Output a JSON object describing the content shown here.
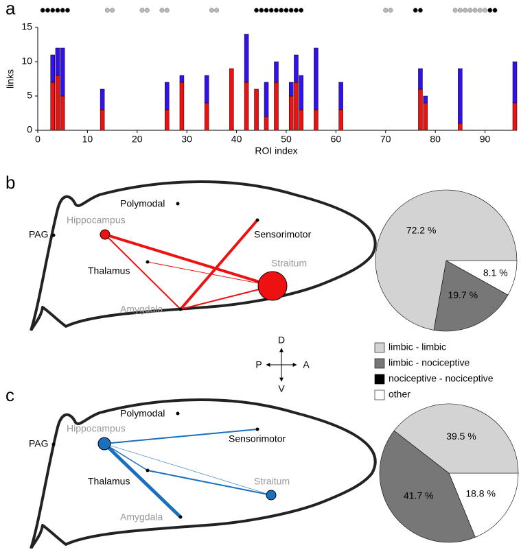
{
  "panel_labels": [
    "a",
    "b",
    "c"
  ],
  "chart_data": [
    {
      "type": "bar",
      "stacked": true,
      "xlabel": "ROI index",
      "ylabel": "links",
      "x": [
        3,
        4,
        5,
        13,
        26,
        29,
        34,
        39,
        42,
        44,
        46,
        48,
        51,
        52,
        53,
        56,
        61,
        77,
        78,
        85,
        96
      ],
      "series": [
        {
          "color": "#ee1111",
          "values": [
            7,
            8,
            5,
            3,
            3,
            7,
            4,
            9,
            7,
            6,
            2,
            7,
            5,
            7,
            3,
            3,
            3,
            6,
            4,
            1,
            4
          ]
        },
        {
          "color": "#3311ee",
          "values": [
            4,
            4,
            7,
            3,
            4,
            1,
            4,
            0,
            7,
            0,
            5,
            3,
            2,
            4,
            5,
            9,
            4,
            3,
            1,
            8,
            6
          ]
        }
      ],
      "markers": [
        {
          "color": "#000000",
          "x": [
            1,
            2,
            3,
            4,
            5,
            6,
            44,
            45,
            46,
            47,
            48,
            49,
            50,
            51,
            52,
            53,
            76,
            77,
            91,
            92
          ]
        },
        {
          "color": "#bbbbbb",
          "x": [
            14,
            15,
            21,
            22,
            25,
            26,
            35,
            36,
            70,
            71,
            84,
            85,
            86,
            87,
            88,
            89,
            90
          ]
        }
      ],
      "xlim": [
        0,
        96
      ],
      "xticks": [
        0,
        10,
        20,
        30,
        40,
        50,
        60,
        70,
        80,
        90
      ],
      "ylim": [
        0,
        15
      ],
      "yticks": [
        0,
        5,
        10,
        15
      ]
    },
    {
      "type": "pie",
      "values": [
        8.1,
        19.7,
        72.2
      ],
      "value_labels": [
        "8.1 %",
        "19.7 %",
        "72.2 %"
      ],
      "colors": [
        "#ffffff",
        "#777777",
        "#d3d3d3"
      ]
    },
    {
      "type": "pie",
      "values": [
        18.8,
        41.7,
        39.5
      ],
      "value_labels": [
        "18.8 %",
        "41.7 %",
        "39.5 %"
      ],
      "colors": [
        "#ffffff",
        "#777777",
        "#d3d3d3"
      ]
    }
  ],
  "legend": [
    {
      "label": "limbic - limbic",
      "color": "#d3d3d3"
    },
    {
      "label": "limbic - nociceptive",
      "color": "#777777"
    },
    {
      "label": "nociceptive - nociceptive",
      "color": "#000000"
    },
    {
      "label": "other",
      "color": "#ffffff"
    }
  ],
  "compass": {
    "up": "D",
    "down": "V",
    "left": "P",
    "right": "A"
  },
  "diagrams": [
    {
      "nodes": [
        "Polymodal",
        "Hippocampus",
        "PAG",
        "Sensorimotor",
        "Thalamus",
        "Straitum",
        "Amygdala"
      ]
    },
    {
      "nodes": [
        "Polymodal",
        "Hippocampus",
        "PAG",
        "Sensorimotor",
        "Thalamus",
        "Straitum",
        "Amygdala"
      ]
    }
  ]
}
